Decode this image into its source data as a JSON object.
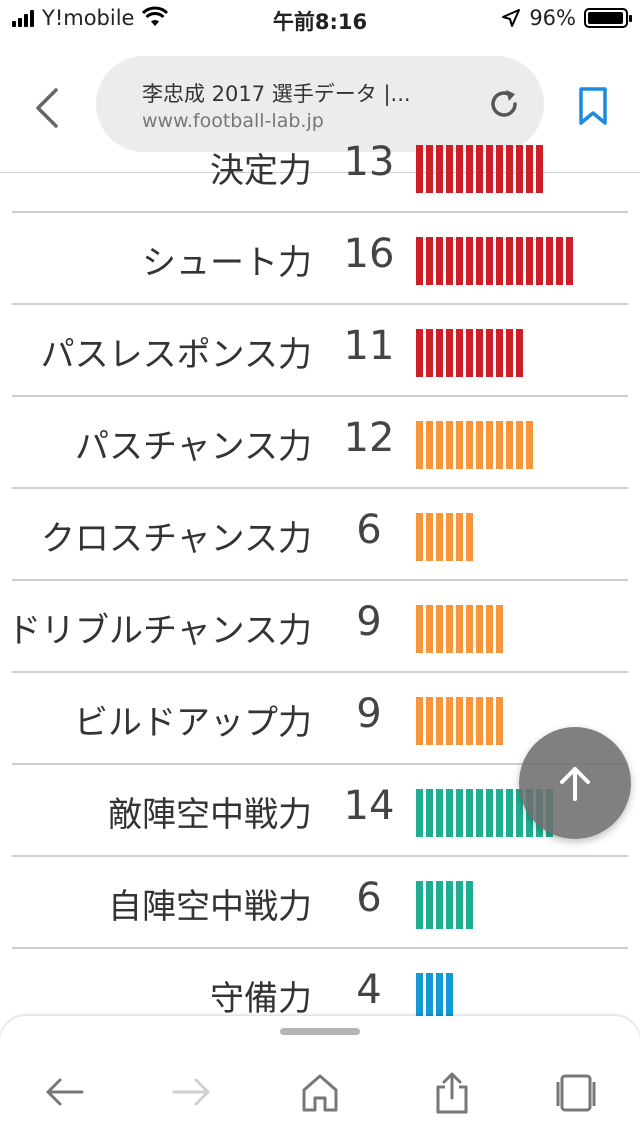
{
  "status_bar": {
    "carrier": "Y!mobile",
    "time": "午前8:16",
    "battery_percent": "96%",
    "battery_level": 0.96,
    "icons": [
      "signal-icon",
      "wifi-icon",
      "location-arrow-icon",
      "battery-icon"
    ]
  },
  "browser": {
    "page_title": "李忠成 2017 選手データ |...",
    "url": "www.football-lab.jp",
    "icons": [
      "chevron-left-icon",
      "reload-icon",
      "bookmark-icon"
    ]
  },
  "stats": [
    {
      "label": "決定力",
      "value": "13",
      "color": "#cc1f27"
    },
    {
      "label": "シュート力",
      "value": "16",
      "color": "#cc1f27"
    },
    {
      "label": "パスレスポンス力",
      "value": "11",
      "color": "#cc1f27"
    },
    {
      "label": "パスチャンス力",
      "value": "12",
      "color": "#f7953a"
    },
    {
      "label": "クロスチャンス力",
      "value": "6",
      "color": "#f7953a"
    },
    {
      "label": "ドリブルチャンス力",
      "value": "9",
      "color": "#f7953a"
    },
    {
      "label": "ビルドアップ力",
      "value": "9",
      "color": "#f7953a"
    },
    {
      "label": "敵陣空中戦力",
      "value": "14",
      "color": "#1fae91"
    },
    {
      "label": "自陣空中戦力",
      "value": "6",
      "color": "#1fae91"
    },
    {
      "label": "守備力",
      "value": "4",
      "color": "#1599d6"
    }
  ],
  "floating_button": {
    "icon": "arrow-up-icon"
  },
  "toolbar": {
    "icons": [
      "back-arrow-icon",
      "forward-arrow-icon",
      "home-icon",
      "share-icon",
      "tabs-icon"
    ]
  }
}
